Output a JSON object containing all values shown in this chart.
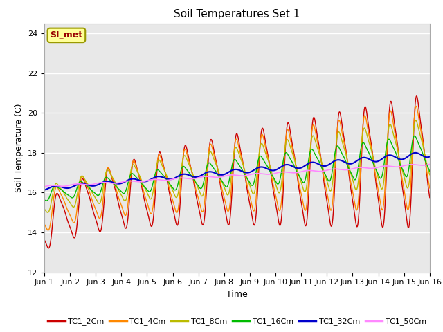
{
  "title": "Soil Temperatures Set 1",
  "xlabel": "Time",
  "ylabel": "Soil Temperature (C)",
  "annotation": "SI_met",
  "ylim": [
    12,
    24.5
  ],
  "xlim": [
    0,
    15
  ],
  "yticks": [
    12,
    14,
    16,
    18,
    20,
    22,
    24
  ],
  "xtick_positions": [
    0,
    1,
    2,
    3,
    4,
    5,
    6,
    7,
    8,
    9,
    10,
    11,
    12,
    13,
    14,
    15
  ],
  "xtick_labels": [
    "Jun 1",
    "Jun 2",
    "Jun 3",
    "Jun 4",
    "Jun 5",
    "Jun 6",
    "Jun 7",
    "Jun 8",
    "Jun 9",
    "Jun 10",
    "Jun 11",
    "Jun 12",
    "Jun 13",
    "Jun 14",
    "Jun 15",
    "Jun 16"
  ],
  "legend_labels": [
    "TC1_2Cm",
    "TC1_4Cm",
    "TC1_8Cm",
    "TC1_16Cm",
    "TC1_32Cm",
    "TC1_50Cm"
  ],
  "line_colors": [
    "#cc0000",
    "#ff8800",
    "#bbbb00",
    "#00bb00",
    "#0000cc",
    "#ff88ff"
  ],
  "line_widths": [
    1.0,
    1.0,
    1.0,
    1.0,
    1.5,
    1.2
  ],
  "background_color": "#e8e8e8",
  "grid_color": "#ffffff",
  "annotation_bg": "#ffff99",
  "annotation_border": "#999900",
  "annotation_text_color": "#990000",
  "title_fontsize": 11,
  "axis_label_fontsize": 9,
  "tick_fontsize": 8,
  "legend_fontsize": 8
}
